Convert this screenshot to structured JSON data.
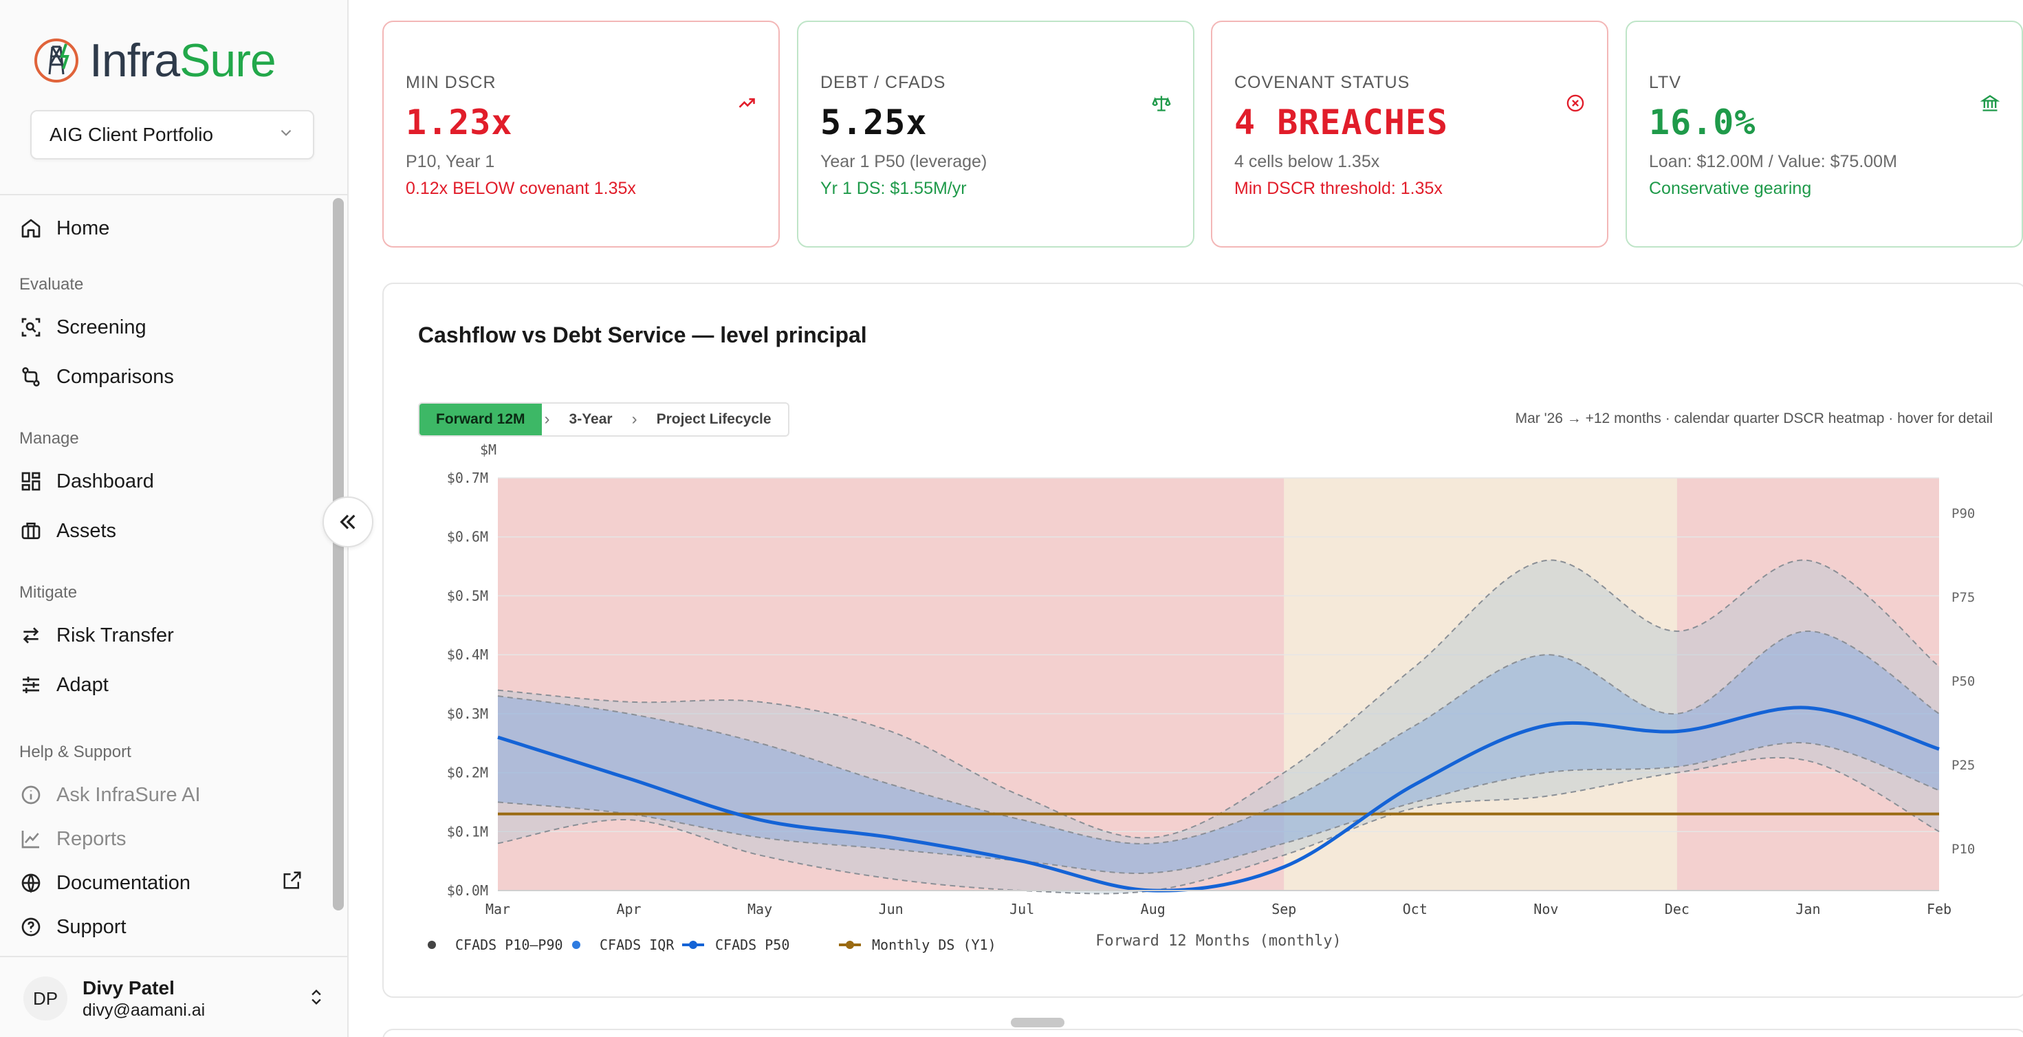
{
  "app": {
    "logo_infra": "Infra",
    "logo_sure": "Sure"
  },
  "sidebar": {
    "portfolio": "AIG Client Portfolio",
    "home": "Home",
    "sections": {
      "evaluate": "Evaluate",
      "manage": "Manage",
      "mitigate": "Mitigate",
      "help": "Help & Support"
    },
    "items": {
      "screening": "Screening",
      "comparisons": "Comparisons",
      "dashboard": "Dashboard",
      "assets": "Assets",
      "risk_transfer": "Risk Transfer",
      "adapt": "Adapt",
      "ask_ai": "Ask InfraSure AI",
      "reports": "Reports",
      "documentation": "Documentation",
      "support": "Support"
    },
    "user": {
      "initials": "DP",
      "name": "Divy Patel",
      "email": "divy@aamani.ai"
    }
  },
  "kpis": [
    {
      "label": "MIN DSCR",
      "value": "1.23x",
      "sub": "P10, Year 1",
      "note": "0.12x BELOW covenant 1.35x",
      "icon": "trending-up-icon"
    },
    {
      "label": "DEBT / CFADS",
      "value": "5.25x",
      "sub": "Year 1 P50 (leverage)",
      "note": "Yr 1 DS: $1.55M/yr",
      "icon": "scale-icon"
    },
    {
      "label": "COVENANT STATUS",
      "value": "4 BREACHES",
      "sub": "4 cells below 1.35x",
      "note": "Min DSCR threshold: 1.35x",
      "icon": "x-circle-icon"
    },
    {
      "label": "LTV",
      "value": "16.0%",
      "sub": "Loan: $12.00M / Value: $75.00M",
      "note": "Conservative gearing",
      "icon": "bank-icon"
    }
  ],
  "chart": {
    "title": "Cashflow vs Debt Service — level principal",
    "tabs": [
      "Forward 12M",
      "3-Year",
      "Project Lifecycle"
    ],
    "active_tab": "Forward 12M",
    "hint": "Mar '26 → +12 months · calendar quarter DSCR heatmap · hover for detail"
  },
  "chart_data": {
    "type": "area",
    "title": "Cashflow vs Debt Service — level principal",
    "xlabel": "Forward 12 Months (monthly)",
    "ylabel": "$M",
    "x": [
      "Mar",
      "Apr",
      "May",
      "Jun",
      "Jul",
      "Aug",
      "Sep",
      "Oct",
      "Nov",
      "Dec",
      "Jan",
      "Feb"
    ],
    "y_ticks": [
      "$0.0M",
      "$0.1M",
      "$0.2M",
      "$0.3M",
      "$0.4M",
      "$0.5M",
      "$0.6M",
      "$0.7M"
    ],
    "ylim": [
      0,
      0.7
    ],
    "right_labels": [
      "P90",
      "P75",
      "P50",
      "P25",
      "P10"
    ],
    "legend": [
      "CFADS P10–P90",
      "CFADS IQR",
      "CFADS P50",
      "Monthly DS (Y1)"
    ],
    "series": [
      {
        "name": "CFADS P90",
        "values": [
          0.34,
          0.32,
          0.32,
          0.27,
          0.16,
          0.09,
          0.2,
          0.38,
          0.56,
          0.44,
          0.56,
          0.38
        ]
      },
      {
        "name": "CFADS P75",
        "values": [
          0.33,
          0.3,
          0.25,
          0.18,
          0.12,
          0.08,
          0.15,
          0.28,
          0.4,
          0.3,
          0.44,
          0.3
        ]
      },
      {
        "name": "CFADS P50",
        "values": [
          0.26,
          0.19,
          0.12,
          0.09,
          0.05,
          0.0,
          0.04,
          0.18,
          0.28,
          0.27,
          0.31,
          0.24
        ]
      },
      {
        "name": "CFADS P25",
        "values": [
          0.15,
          0.13,
          0.09,
          0.07,
          0.05,
          0.03,
          0.08,
          0.15,
          0.2,
          0.21,
          0.25,
          0.17
        ]
      },
      {
        "name": "CFADS P10",
        "values": [
          0.08,
          0.12,
          0.06,
          0.02,
          0.0,
          0.0,
          0.06,
          0.14,
          0.16,
          0.2,
          0.22,
          0.1
        ]
      },
      {
        "name": "Monthly DS (Y1)",
        "values": [
          0.13,
          0.13,
          0.13,
          0.13,
          0.13,
          0.13,
          0.13,
          0.13,
          0.13,
          0.13,
          0.13,
          0.13
        ]
      }
    ],
    "dscr_heatmap_columns": [
      {
        "from": "Mar",
        "to": "Sep",
        "status": "breach"
      },
      {
        "from": "Sep",
        "to": "Dec",
        "status": "near"
      },
      {
        "from": "Dec",
        "to": "Feb",
        "status": "breach"
      }
    ],
    "colors": {
      "p10_p90": "#b9c7d3",
      "iqr": "#7fa6e0",
      "p50": "#1463d6",
      "ds": "#9a6a12",
      "breach": "#f08a8a",
      "near": "#f7d1a6",
      "ok": "#c9d9c9"
    }
  }
}
